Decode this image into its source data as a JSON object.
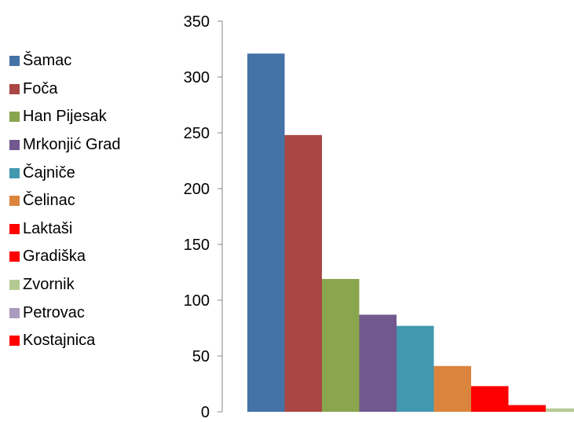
{
  "chart_data": {
    "type": "bar",
    "title": "",
    "xlabel": "",
    "ylabel": "",
    "ylim": [
      0,
      350
    ],
    "yticks": [
      0,
      50,
      100,
      150,
      200,
      250,
      300,
      350
    ],
    "grid": false,
    "legend_position": "left",
    "series": [
      {
        "name": "Šamac",
        "value": 321,
        "color": "#4572A7"
      },
      {
        "name": "Foča",
        "value": 248,
        "color": "#AA4643"
      },
      {
        "name": "Han Pijesak",
        "value": 119,
        "color": "#89A54E"
      },
      {
        "name": "Mrkonjić Grad",
        "value": 87,
        "color": "#71588F"
      },
      {
        "name": "Čajniče",
        "value": 77,
        "color": "#4198AF"
      },
      {
        "name": "Čelinac",
        "value": 41,
        "color": "#DB843D"
      },
      {
        "name": "Laktaši",
        "value": 23,
        "color": "#FF0000"
      },
      {
        "name": "Gradiška",
        "value": 6,
        "color": "#FF0000"
      },
      {
        "name": "Zvornik",
        "value": 3,
        "color": "#B5CA92"
      },
      {
        "name": "Petrovac",
        "value": 0,
        "color": "#A99BBD"
      },
      {
        "name": "Kostajnica",
        "value": 0,
        "color": "#FF0000"
      }
    ]
  }
}
